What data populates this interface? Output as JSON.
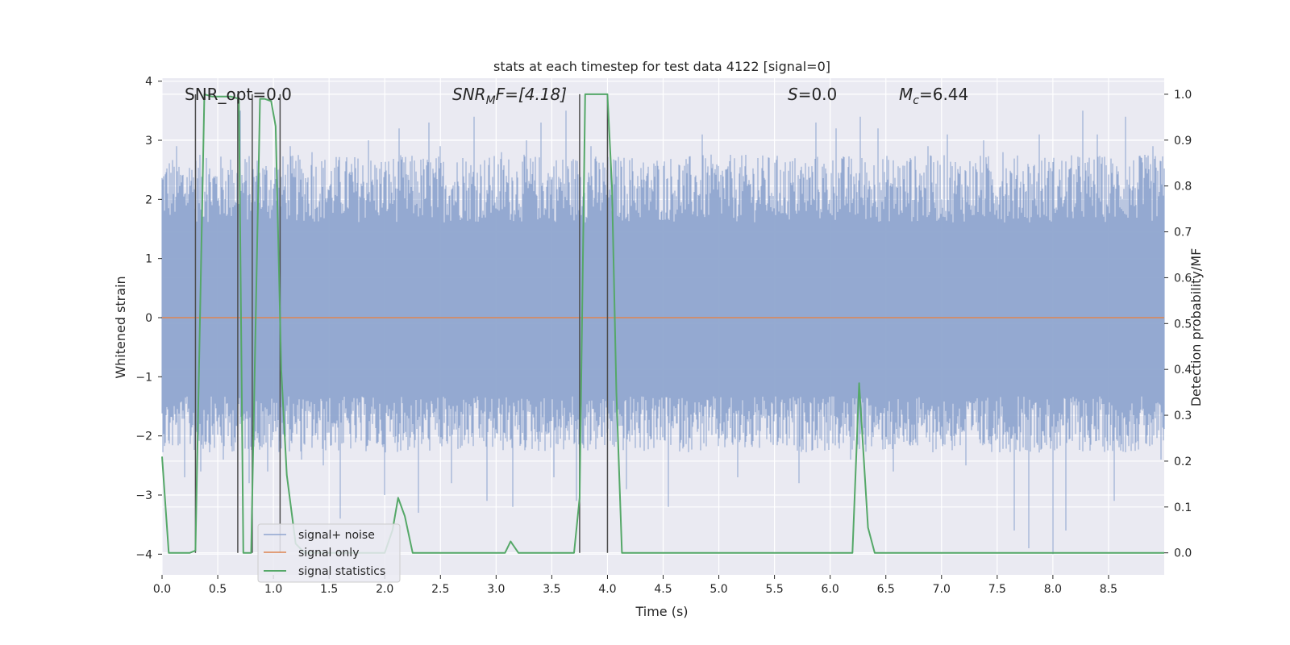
{
  "chart_data": {
    "type": "line",
    "title": "stats at each timestep for test data 4122 [signal=0]",
    "xlabel": "Time (s)",
    "ylabel_left": "Whitened strain",
    "ylabel_right": "Detection probability/MF",
    "xlim": [
      0.0,
      9.0
    ],
    "ylim_left": [
      -4.35,
      4.05
    ],
    "ylim_right": [
      -0.048,
      1.035
    ],
    "x_ticks": [
      0.0,
      0.5,
      1.0,
      1.5,
      2.0,
      2.5,
      3.0,
      3.5,
      4.0,
      4.5,
      5.0,
      5.5,
      6.0,
      6.5,
      7.0,
      7.5,
      8.0,
      8.5
    ],
    "x_tick_labels": [
      "0.0",
      "0.5",
      "1.0",
      "1.5",
      "2.0",
      "2.5",
      "3.0",
      "3.5",
      "4.0",
      "4.5",
      "5.0",
      "5.5",
      "6.0",
      "6.5",
      "7.0",
      "7.5",
      "8.0",
      "8.5"
    ],
    "y_left_ticks": [
      4,
      3,
      2,
      1,
      0,
      -1,
      -2,
      -3,
      -4
    ],
    "y_left_tick_labels": [
      "4",
      "3",
      "2",
      "1",
      "0",
      "−1",
      "−2",
      "−3",
      "−4"
    ],
    "y_right_ticks": [
      1.0,
      0.9,
      0.8,
      0.7,
      0.6,
      0.5,
      0.4,
      0.3,
      0.2,
      0.1,
      0.0
    ],
    "y_right_tick_labels": [
      "1.0",
      "0.9",
      "0.8",
      "0.7",
      "0.6",
      "0.5",
      "0.4",
      "0.3",
      "0.2",
      "0.1",
      "0.0"
    ],
    "annotations": {
      "snr_opt": "SNR_opt=0.0",
      "snr_mf_main": "SNR",
      "snr_mf_sub": "M",
      "snr_mf_rest": "F=[4.18]",
      "s_main": "S",
      "s_rest": "=0.0",
      "mc_main": "M",
      "mc_sub": "c",
      "mc_rest": "=6.44"
    },
    "legend": {
      "placement": "lower-left",
      "entries": [
        "signal+ noise",
        "signal only",
        "signal statistics"
      ]
    },
    "series": [
      {
        "name": "signal+ noise",
        "axis": "left",
        "style": "noise-band",
        "envelope_upper": 2.3,
        "envelope_lower": -1.9,
        "peaks": [
          [
            0.05,
            2.1
          ],
          [
            0.13,
            2.9
          ],
          [
            0.2,
            -2.7
          ],
          [
            0.27,
            2.5
          ],
          [
            0.35,
            -2.6
          ],
          [
            0.4,
            2.7
          ],
          [
            0.55,
            -2.4
          ],
          [
            0.63,
            2.5
          ],
          [
            0.7,
            3.5
          ],
          [
            0.78,
            -2.8
          ],
          [
            0.85,
            2.4
          ],
          [
            0.95,
            -2.6
          ],
          [
            1.05,
            2.2
          ],
          [
            1.15,
            2.9
          ],
          [
            1.25,
            -2.4
          ],
          [
            1.35,
            2.8
          ],
          [
            1.45,
            -2.5
          ],
          [
            1.6,
            -3.4
          ],
          [
            1.7,
            2.6
          ],
          [
            1.85,
            3.0
          ],
          [
            2.0,
            -3.0
          ],
          [
            2.13,
            3.2
          ],
          [
            2.3,
            -3.3
          ],
          [
            2.4,
            3.3
          ],
          [
            2.5,
            2.9
          ],
          [
            2.6,
            -2.8
          ],
          [
            2.7,
            2.7
          ],
          [
            2.8,
            3.4
          ],
          [
            2.92,
            -3.1
          ],
          [
            3.05,
            2.8
          ],
          [
            3.15,
            -3.2
          ],
          [
            3.27,
            3.0
          ],
          [
            3.4,
            3.3
          ],
          [
            3.52,
            -2.7
          ],
          [
            3.63,
            3.5
          ],
          [
            3.72,
            -3.1
          ],
          [
            3.85,
            2.9
          ],
          [
            4.0,
            2.5
          ],
          [
            4.17,
            -2.9
          ],
          [
            4.35,
            2.4
          ],
          [
            4.55,
            -3.2
          ],
          [
            4.72,
            2.6
          ],
          [
            4.85,
            3.1
          ],
          [
            5.0,
            2.3
          ],
          [
            5.17,
            -2.7
          ],
          [
            5.35,
            2.7
          ],
          [
            5.55,
            2.5
          ],
          [
            5.72,
            -2.8
          ],
          [
            5.87,
            3.3
          ],
          [
            6.05,
            3.2
          ],
          [
            6.18,
            -2.4
          ],
          [
            6.27,
            3.4
          ],
          [
            6.43,
            3.2
          ],
          [
            6.57,
            -2.6
          ],
          [
            6.72,
            2.7
          ],
          [
            6.88,
            2.9
          ],
          [
            7.05,
            3.1
          ],
          [
            7.22,
            -2.5
          ],
          [
            7.38,
            3.0
          ],
          [
            7.55,
            2.8
          ],
          [
            7.65,
            -3.6
          ],
          [
            7.78,
            -3.9
          ],
          [
            7.88,
            3.1
          ],
          [
            8.0,
            -4.0
          ],
          [
            8.12,
            -3.6
          ],
          [
            8.27,
            3.5
          ],
          [
            8.4,
            3.1
          ],
          [
            8.55,
            -3.1
          ],
          [
            8.65,
            3.4
          ],
          [
            8.8,
            2.7
          ],
          [
            8.9,
            2.9
          ],
          [
            8.97,
            -2.4
          ]
        ]
      },
      {
        "name": "signal only",
        "axis": "left",
        "x": [
          0.0,
          9.0
        ],
        "y": [
          0.0,
          0.0
        ]
      },
      {
        "name": "signal statistics",
        "axis": "right",
        "x": [
          0.0,
          0.06,
          0.13,
          0.25,
          0.3,
          0.38,
          0.45,
          0.55,
          0.62,
          0.69,
          0.73,
          0.8,
          0.88,
          0.92,
          0.98,
          1.02,
          1.07,
          1.12,
          1.2,
          1.28,
          1.4,
          1.6,
          1.8,
          2.0,
          2.07,
          2.12,
          2.18,
          2.25,
          2.5,
          3.0,
          3.08,
          3.13,
          3.2,
          3.4,
          3.7,
          3.75,
          3.8,
          3.84,
          3.9,
          4.0,
          4.04,
          4.08,
          4.13,
          4.5,
          5.0,
          5.5,
          6.0,
          6.2,
          6.26,
          6.34,
          6.4,
          7.0,
          8.0,
          9.0
        ],
        "y": [
          0.21,
          0.0,
          0.0,
          0.0,
          0.005,
          1.0,
          0.995,
          0.995,
          0.995,
          0.99,
          0.0,
          0.0,
          0.99,
          0.99,
          0.985,
          0.93,
          0.4,
          0.17,
          0.02,
          0.0,
          0.0,
          0.0,
          0.0,
          0.0,
          0.05,
          0.12,
          0.08,
          0.0,
          0.0,
          0.0,
          0.0,
          0.025,
          0.0,
          0.0,
          0.0,
          0.12,
          1.0,
          1.0,
          1.0,
          1.0,
          0.8,
          0.35,
          0.0,
          0.0,
          0.0,
          0.0,
          0.0,
          0.0,
          0.37,
          0.055,
          0.0,
          0.0,
          0.0,
          0.0
        ]
      }
    ],
    "vertical_markers_x": [
      0.3,
      0.68,
      0.81,
      1.06,
      3.75,
      4.0
    ],
    "colors": {
      "plot_bg": "#EAEAF2",
      "grid": "#FFFFFF",
      "noise": "#8FA5CF",
      "signal_only": "#DD8452",
      "statistics": "#55A868",
      "markers": "#4D4D4D",
      "text": "#262626"
    }
  }
}
